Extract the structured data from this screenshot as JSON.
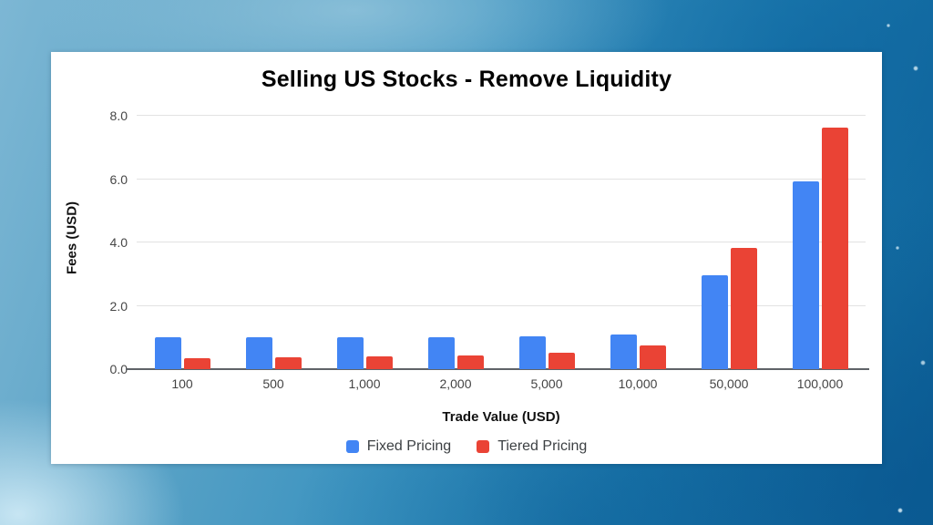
{
  "background": {
    "description": "blue water / ice photographic texture, light upper-left fading to deep blue lower-right with bright speckles",
    "palette": [
      "#7db7d4",
      "#5da4c7",
      "#2d8abb",
      "#0c6097",
      "#d8f0fa"
    ]
  },
  "chart_data": {
    "type": "bar",
    "title": "Selling US Stocks - Remove Liquidity",
    "xlabel": "Trade Value (USD)",
    "ylabel": "Fees (USD)",
    "categories": [
      "100",
      "500",
      "1,000",
      "2,000",
      "5,000",
      "10,000",
      "50,000",
      "100,000"
    ],
    "series": [
      {
        "name": "Fixed Pricing",
        "color": "#4285F4",
        "values": [
          1.0,
          1.0,
          1.0,
          1.0,
          1.05,
          1.1,
          2.97,
          5.95
        ]
      },
      {
        "name": "Tiered Pricing",
        "color": "#EA4335",
        "values": [
          0.35,
          0.38,
          0.4,
          0.43,
          0.53,
          0.75,
          3.82,
          7.65
        ]
      }
    ],
    "y_ticks": [
      0.0,
      2.0,
      4.0,
      6.0,
      8.0
    ],
    "y_tick_labels": [
      "0.0",
      "2.0",
      "4.0",
      "6.0",
      "8.0"
    ],
    "ylim": [
      0,
      8.3
    ],
    "grid": true,
    "legend_position": "bottom",
    "gridline_color": "#e2e2e2",
    "axis_line_color": "#5f6368"
  }
}
